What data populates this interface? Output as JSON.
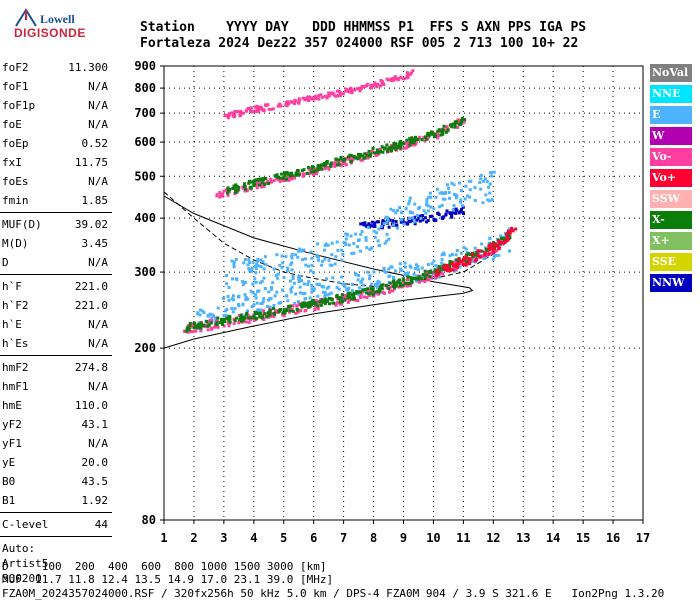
{
  "logo": {
    "line1": "Lowell",
    "line2": "DIGISONDE"
  },
  "header": {
    "line1": "Station    YYYY DAY   DDD HHMMSS P1  FFS S AXN PPS IGA PS",
    "line2": "Fortaleza 2024 Dez22 357 024000 RSF 005 2 713 100 10+ 22"
  },
  "params": {
    "group1": [
      {
        "k": "foF2",
        "v": "11.300"
      },
      {
        "k": "foF1",
        "v": "N/A"
      },
      {
        "k": "foF1p",
        "v": "N/A"
      },
      {
        "k": "foE",
        "v": "N/A"
      },
      {
        "k": "foEp",
        "v": "0.52"
      },
      {
        "k": "fxI",
        "v": "11.75"
      },
      {
        "k": "foEs",
        "v": "N/A"
      },
      {
        "k": "fmin",
        "v": "1.85"
      }
    ],
    "group2": [
      {
        "k": "MUF(D)",
        "v": "39.02"
      },
      {
        "k": "M(D)",
        "v": "3.45"
      },
      {
        "k": "D",
        "v": "N/A"
      }
    ],
    "group3": [
      {
        "k": "h`F",
        "v": "221.0"
      },
      {
        "k": "h`F2",
        "v": "221.0"
      },
      {
        "k": "h`E",
        "v": "N/A"
      },
      {
        "k": "h`Es",
        "v": "N/A"
      }
    ],
    "group4": [
      {
        "k": "hmF2",
        "v": "274.8"
      },
      {
        "k": "hmF1",
        "v": "N/A"
      },
      {
        "k": "hmE",
        "v": "110.0"
      },
      {
        "k": "yF2",
        "v": "43.1"
      },
      {
        "k": "yF1",
        "v": "N/A"
      },
      {
        "k": "yE",
        "v": "20.0"
      },
      {
        "k": "B0",
        "v": "43.5"
      },
      {
        "k": "B1",
        "v": "1.92"
      }
    ],
    "group5": [
      {
        "k": "C-level",
        "v": "44"
      }
    ],
    "auto": [
      "Auto:",
      "Artist5",
      "500200"
    ]
  },
  "legend": [
    {
      "label": "NoVal",
      "color": "#808080"
    },
    {
      "label": "NNE",
      "color": "#00e5ff"
    },
    {
      "label": "E",
      "color": "#4db3ff"
    },
    {
      "label": "W",
      "color": "#b000b0"
    },
    {
      "label": "Vo-",
      "color": "#ff3fa0"
    },
    {
      "label": "Vo+",
      "color": "#ff0030"
    },
    {
      "label": "SSW",
      "color": "#ffb0b0"
    },
    {
      "label": "X-",
      "color": "#0a7d0a"
    },
    {
      "label": "X+",
      "color": "#80c060"
    },
    {
      "label": "SSE",
      "color": "#d4d400"
    },
    {
      "label": "NNW",
      "color": "#0000c0"
    }
  ],
  "footer": {
    "line1": "D     100  200  400  600  800 1000 1500 3000 [km]",
    "line2": "MUF  11.7 11.8 12.4 13.5 14.9 17.0 23.1 39.0 [MHz]",
    "line3": "FZA0M_2024357024000.RSF / 320fx256h 50 kHz 5.0 km / DPS-4 FZA0M 904 / 3.9 S 321.6 E   Ion2Png 1.3.20"
  },
  "chart_data": {
    "type": "scatter",
    "x_ticks": [
      1,
      2,
      3,
      4,
      5,
      6,
      7,
      8,
      9,
      10,
      11,
      12,
      13,
      14,
      15,
      16,
      17
    ],
    "y_ticks": [
      80,
      200,
      300,
      400,
      500,
      600,
      700,
      800,
      900
    ],
    "xlim": [
      1,
      17
    ],
    "ylim": [
      80,
      900
    ],
    "y_scale": "log",
    "grid": true,
    "legend_position": "right",
    "series": [
      {
        "name": "E",
        "color": "#4db3ff",
        "trace": [
          [
            2.0,
            230
          ],
          [
            3,
            250
          ],
          [
            4,
            260
          ],
          [
            5,
            270
          ],
          [
            6,
            275
          ],
          [
            7,
            280
          ],
          [
            8,
            290
          ],
          [
            9,
            300
          ],
          [
            10,
            310
          ],
          [
            11,
            330
          ],
          [
            12,
            345
          ],
          [
            12.5,
            360
          ]
        ],
        "spread": 0.06
      },
      {
        "name": "Vo-",
        "color": "#ff3fa0",
        "trace": [
          [
            1.6,
            222
          ],
          [
            3,
            232
          ],
          [
            4,
            238
          ],
          [
            5,
            246
          ],
          [
            6,
            254
          ],
          [
            7,
            262
          ],
          [
            8,
            272
          ],
          [
            9,
            285
          ],
          [
            10,
            300
          ],
          [
            11,
            320
          ],
          [
            12,
            345
          ],
          [
            12.6,
            370
          ]
        ],
        "spread": 0.025
      },
      {
        "name": "X-",
        "color": "#0a7d0a",
        "trace": [
          [
            1.6,
            224
          ],
          [
            3,
            234
          ],
          [
            4,
            240
          ],
          [
            5,
            248
          ],
          [
            6,
            256
          ],
          [
            7,
            264
          ],
          [
            8,
            274
          ],
          [
            9,
            288
          ],
          [
            10,
            303
          ],
          [
            11,
            325
          ],
          [
            12,
            350
          ],
          [
            12.6,
            375
          ]
        ],
        "spread": 0.02
      },
      {
        "name": "Vo+",
        "color": "#ff0030",
        "trace": [
          [
            10,
            300
          ],
          [
            11,
            320
          ],
          [
            12,
            345
          ],
          [
            12.7,
            380
          ]
        ],
        "spread": 0.025
      },
      {
        "name": "NNW",
        "color": "#0000c0",
        "trace": [
          [
            7.5,
            385
          ],
          [
            9,
            395
          ],
          [
            10,
            405
          ],
          [
            11,
            420
          ]
        ],
        "spread": 0.02
      },
      {
        "name": "E2",
        "color": "#4db3ff",
        "trace": [
          [
            3,
            300
          ],
          [
            5,
            310
          ],
          [
            8,
            360
          ],
          [
            9,
            420
          ],
          [
            10,
            440
          ],
          [
            11,
            460
          ],
          [
            12,
            480
          ]
        ],
        "spread": 0.08
      },
      {
        "name": "Vo- 2nd hop",
        "color": "#ff3fa0",
        "trace": [
          [
            2.7,
            455
          ],
          [
            4,
            480
          ],
          [
            5,
            500
          ],
          [
            6,
            520
          ],
          [
            7,
            545
          ],
          [
            8,
            570
          ],
          [
            9,
            595
          ],
          [
            10,
            625
          ],
          [
            11,
            680
          ]
        ],
        "spread": 0.02
      },
      {
        "name": "X- 2nd hop",
        "color": "#0a7d0a",
        "trace": [
          [
            3,
            465
          ],
          [
            5,
            505
          ],
          [
            7,
            550
          ],
          [
            9,
            600
          ],
          [
            10,
            630
          ],
          [
            11,
            680
          ]
        ],
        "spread": 0.02
      },
      {
        "name": "Vo- 3rd hop",
        "color": "#ff3fa0",
        "trace": [
          [
            2.9,
            690
          ],
          [
            4,
            720
          ],
          [
            5,
            740
          ],
          [
            6,
            765
          ],
          [
            7,
            790
          ],
          [
            8,
            820
          ],
          [
            9,
            860
          ],
          [
            9.3,
            880
          ]
        ],
        "spread": 0.015
      }
    ],
    "profile_solid": [
      [
        1,
        200
      ],
      [
        2,
        210
      ],
      [
        4,
        225
      ],
      [
        6,
        240
      ],
      [
        8,
        252
      ],
      [
        9,
        258
      ],
      [
        10,
        263
      ],
      [
        11,
        268
      ],
      [
        11.3,
        272
      ],
      [
        11.2,
        276
      ],
      [
        10,
        285
      ],
      [
        8,
        305
      ],
      [
        6,
        330
      ],
      [
        4,
        360
      ],
      [
        2,
        410
      ],
      [
        1,
        450
      ]
    ],
    "profile_dashed": [
      [
        1,
        460
      ],
      [
        2,
        400
      ],
      [
        3,
        350
      ],
      [
        4,
        320
      ],
      [
        5,
        300
      ],
      [
        6,
        290
      ],
      [
        7,
        282
      ],
      [
        8,
        278
      ],
      [
        9,
        280
      ],
      [
        10,
        290
      ],
      [
        11,
        300
      ],
      [
        12,
        330
      ],
      [
        12.6,
        360
      ]
    ]
  }
}
